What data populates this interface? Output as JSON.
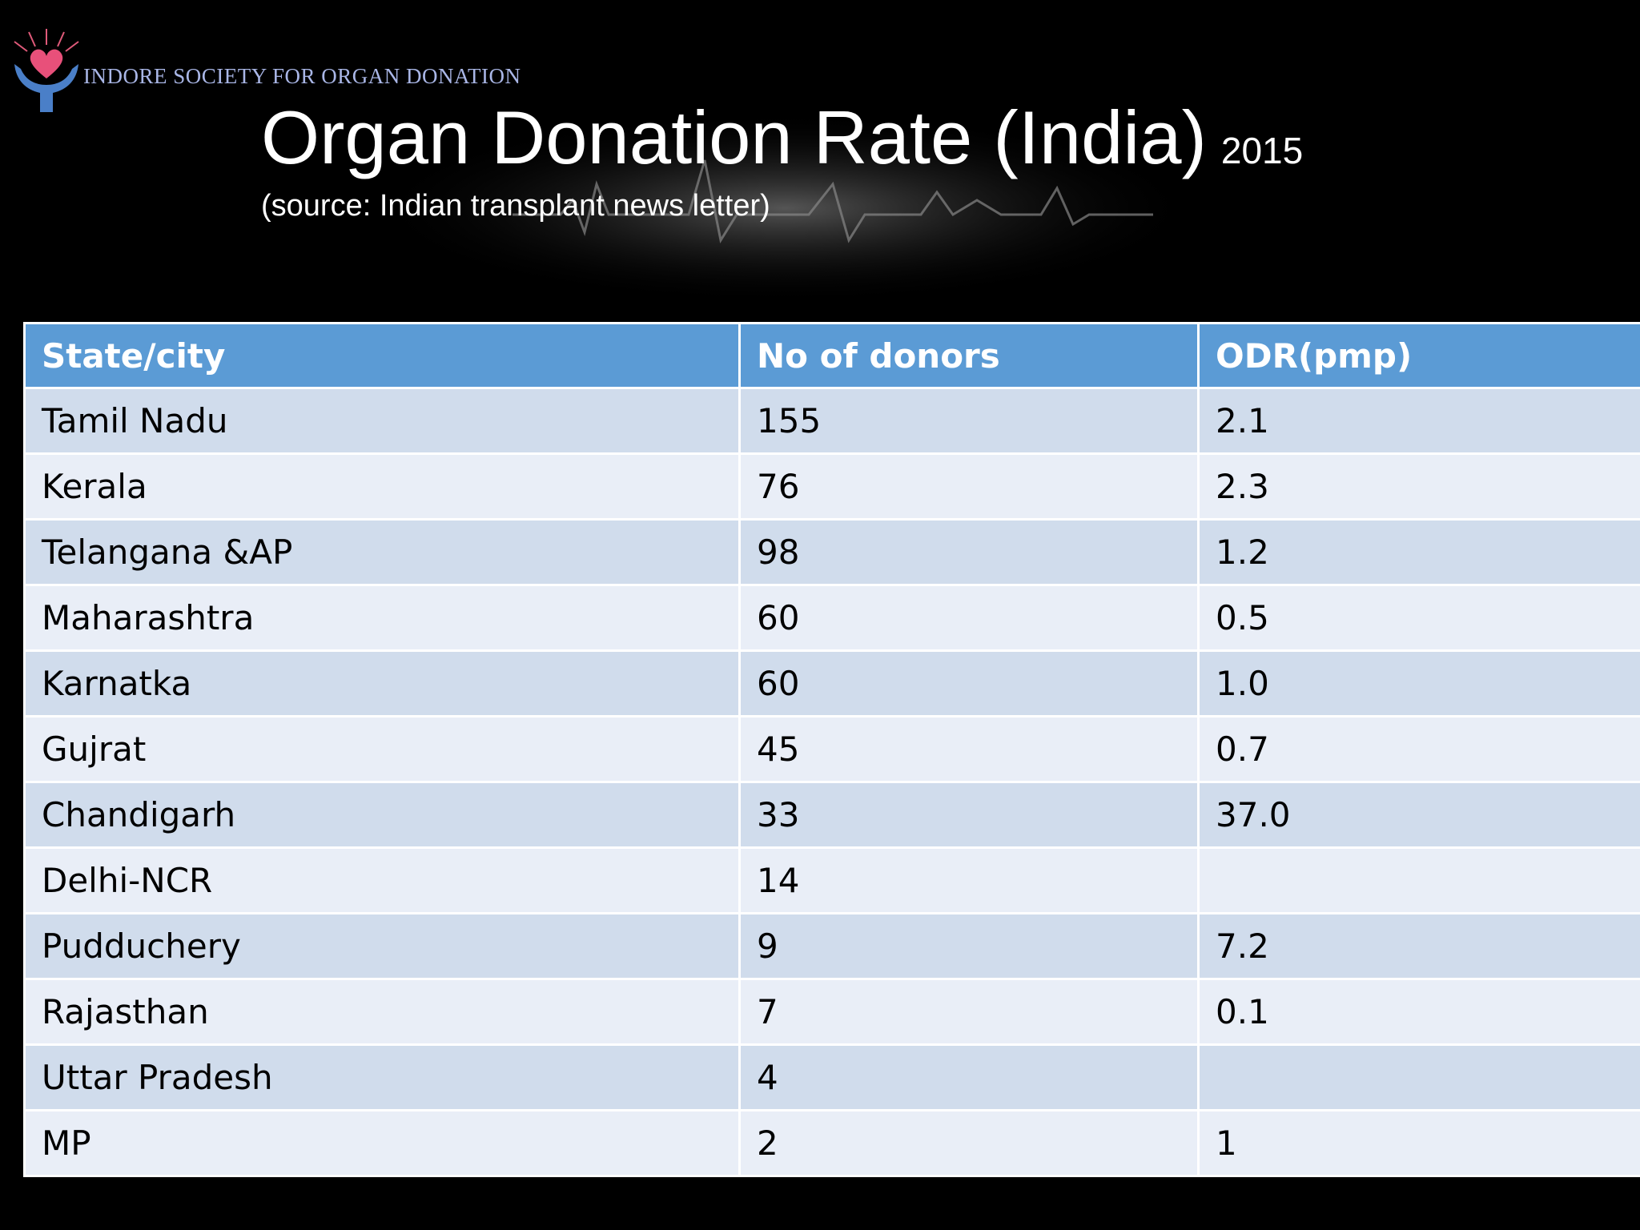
{
  "header": {
    "organization": "INDORE SOCIETY FOR ORGAN DONATION",
    "title": "Organ Donation Rate (India)",
    "year": "2015",
    "source": "(source: Indian transplant news letter)"
  },
  "table": {
    "columns": [
      "State/city",
      "No of donors",
      "ODR(pmp)"
    ],
    "rows": [
      [
        "Tamil Nadu",
        "155",
        "2.1"
      ],
      [
        "Kerala",
        "76",
        "2.3"
      ],
      [
        "Telangana &AP",
        "98",
        "1.2"
      ],
      [
        "Maharashtra",
        "60",
        "0.5"
      ],
      [
        "Karnatka",
        "60",
        "1.0"
      ],
      [
        "Gujrat",
        "45",
        "0.7"
      ],
      [
        "Chandigarh",
        "33",
        "37.0"
      ],
      [
        "Delhi-NCR",
        "14",
        null
      ],
      [
        "Pudduchery",
        "9",
        "7.2"
      ],
      [
        "Rajasthan",
        "7",
        "0.1"
      ],
      [
        "Uttar Pradesh",
        "4",
        null
      ],
      [
        "MP",
        "2",
        "1"
      ]
    ]
  }
}
